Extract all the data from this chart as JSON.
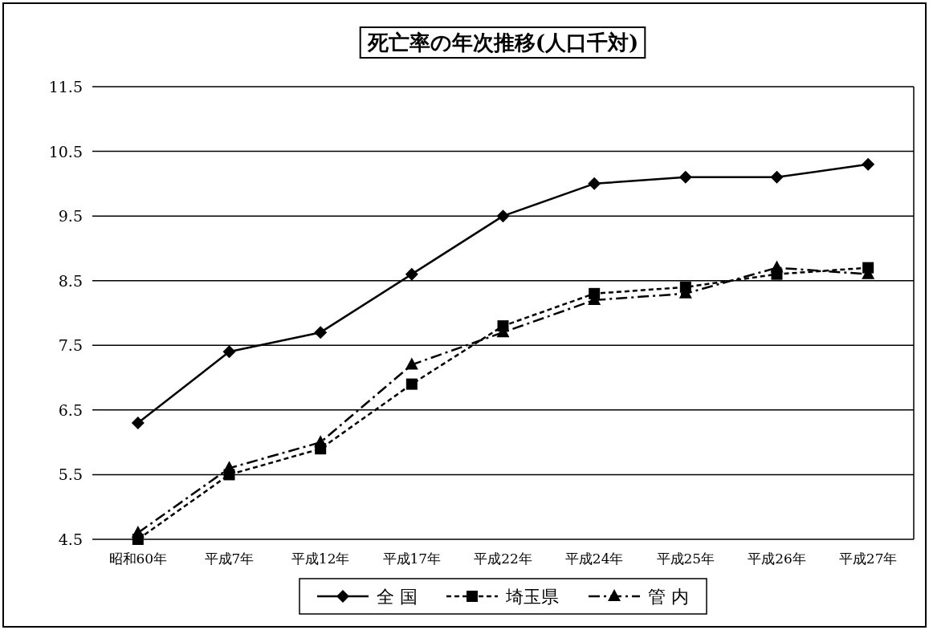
{
  "chart_data": {
    "type": "line",
    "title": "死亡率の年次推移(人口千対)",
    "categories": [
      "昭和60年",
      "平成7年",
      "平成12年",
      "平成17年",
      "平成22年",
      "平成24年",
      "平成25年",
      "平成26年",
      "平成27年"
    ],
    "series": [
      {
        "name": "全 国",
        "color": "#000000",
        "marker": "diamond",
        "line_style": "solid",
        "values": [
          6.3,
          7.4,
          7.7,
          8.6,
          9.5,
          10.0,
          10.1,
          10.1,
          10.3
        ]
      },
      {
        "name": "埼玉県",
        "color": "#000000",
        "marker": "square",
        "line_style": "dashed",
        "values": [
          4.5,
          5.5,
          5.9,
          6.9,
          7.8,
          8.3,
          8.4,
          8.6,
          8.7
        ]
      },
      {
        "name": "管 内",
        "color": "#000000",
        "marker": "triangle",
        "line_style": "dashdot",
        "values": [
          4.6,
          5.6,
          6.0,
          7.2,
          7.7,
          8.2,
          8.3,
          8.7,
          8.6
        ]
      }
    ],
    "ylim": [
      4.5,
      11.5
    ],
    "yticks": [
      4.5,
      5.5,
      6.5,
      7.5,
      8.5,
      9.5,
      10.5,
      11.5
    ],
    "grid": "y",
    "legend": "bottom"
  }
}
